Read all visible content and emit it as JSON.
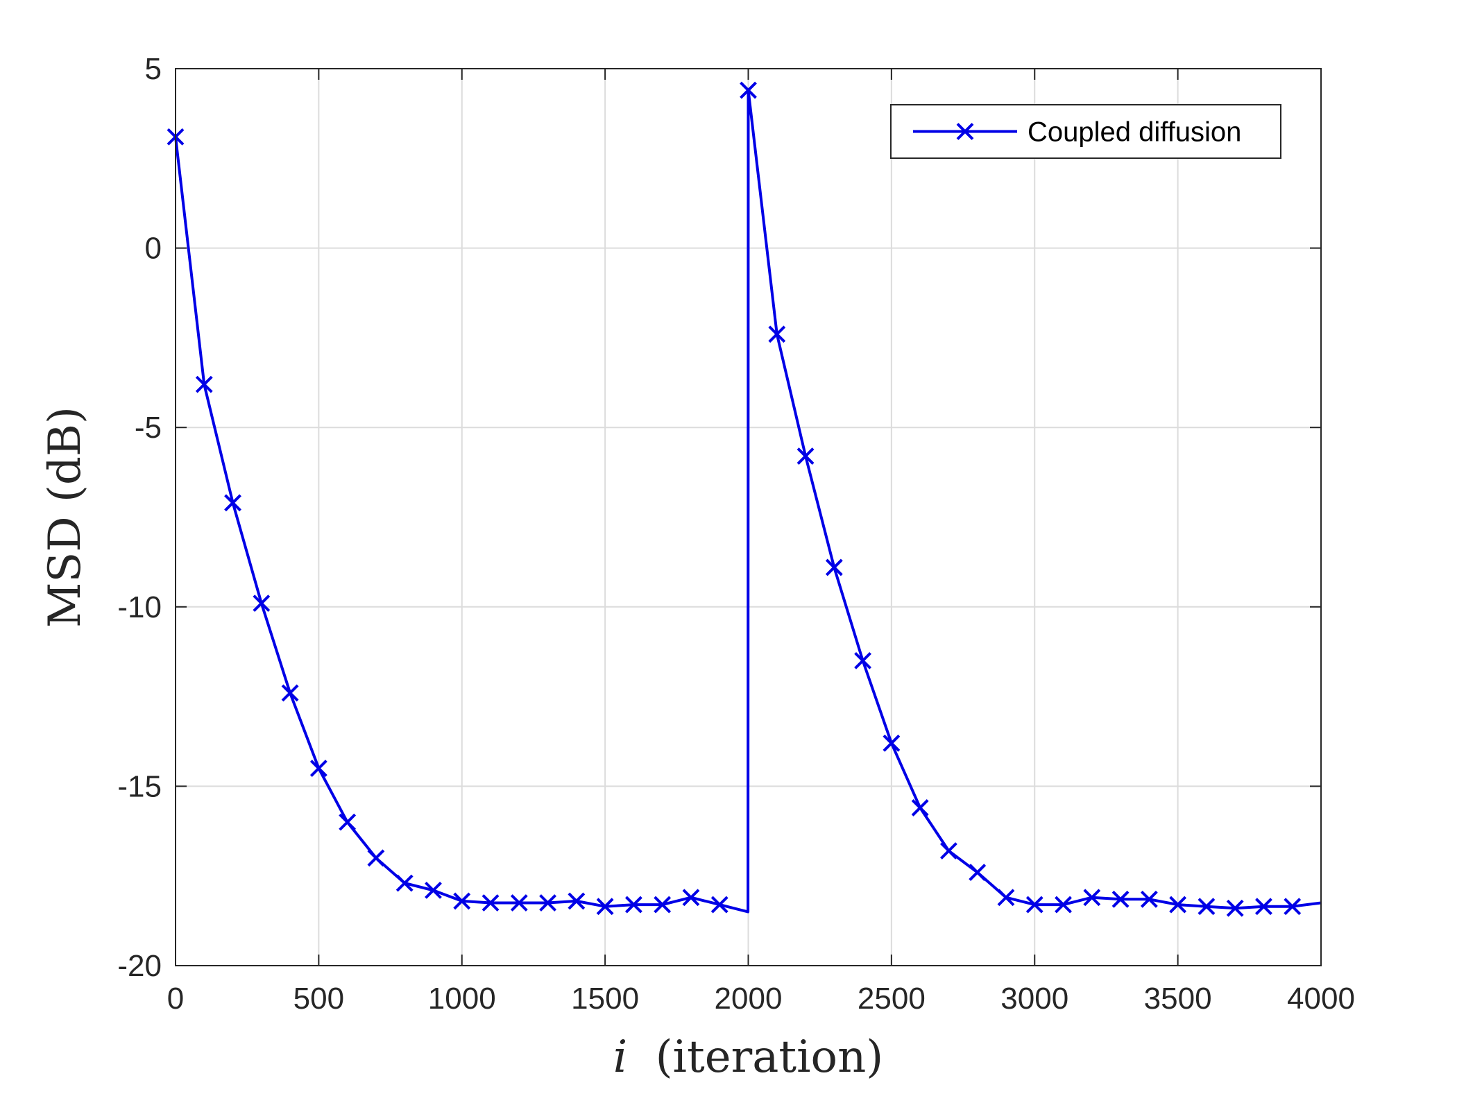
{
  "chart_data": {
    "type": "line",
    "xlabel_italic": "i",
    "xlabel": "(iteration)",
    "ylabel": "MSD (dB)",
    "xlim": [
      0,
      4000
    ],
    "ylim": [
      -20,
      5
    ],
    "xticks": [
      0,
      500,
      1000,
      1500,
      2000,
      2500,
      3000,
      3500,
      4000
    ],
    "yticks": [
      -20,
      -15,
      -10,
      -5,
      0,
      5
    ],
    "xtick_labels": [
      "0",
      "500",
      "1000",
      "1500",
      "2000",
      "2500",
      "3000",
      "3500",
      "4000"
    ],
    "ytick_labels": [
      "-20",
      "-15",
      "-10",
      "-5",
      "0",
      "5"
    ],
    "grid": true,
    "legend_position": "top-right",
    "series": [
      {
        "name": "Coupled diffusion",
        "color": "#0000e6",
        "marker": "x",
        "x": [
          0,
          100,
          200,
          300,
          400,
          500,
          600,
          700,
          800,
          900,
          1000,
          1100,
          1200,
          1300,
          1400,
          1500,
          1600,
          1700,
          1800,
          1900,
          1999,
          2000,
          2100,
          2200,
          2300,
          2400,
          2500,
          2600,
          2700,
          2800,
          2900,
          3000,
          3100,
          3200,
          3300,
          3400,
          3500,
          3600,
          3700,
          3800,
          3900,
          4000
        ],
        "y": [
          3.1,
          -3.8,
          -7.1,
          -9.9,
          -12.4,
          -14.5,
          -16.0,
          -17.0,
          -17.7,
          -17.9,
          -18.2,
          -18.25,
          -18.25,
          -18.25,
          -18.2,
          -18.35,
          -18.3,
          -18.3,
          -18.1,
          -18.3,
          -18.5,
          4.4,
          -2.4,
          -5.8,
          -8.9,
          -11.5,
          -13.8,
          -15.6,
          -16.8,
          -17.4,
          -18.1,
          -18.3,
          -18.3,
          -18.1,
          -18.15,
          -18.15,
          -18.3,
          -18.35,
          -18.4,
          -18.35,
          -18.35,
          -18.25
        ],
        "marker_x": [
          0,
          100,
          200,
          300,
          400,
          500,
          600,
          700,
          800,
          900,
          1000,
          1100,
          1200,
          1300,
          1400,
          1500,
          1600,
          1700,
          1800,
          1900,
          2000,
          2100,
          2200,
          2300,
          2400,
          2500,
          2600,
          2700,
          2800,
          2900,
          3000,
          3100,
          3200,
          3300,
          3400,
          3500,
          3600,
          3700,
          3800,
          3900
        ],
        "marker_y": [
          3.1,
          -3.8,
          -7.1,
          -9.9,
          -12.4,
          -14.5,
          -16.0,
          -17.0,
          -17.7,
          -17.9,
          -18.2,
          -18.25,
          -18.25,
          -18.25,
          -18.2,
          -18.35,
          -18.3,
          -18.3,
          -18.1,
          -18.3,
          4.4,
          -2.4,
          -5.8,
          -8.9,
          -11.5,
          -13.8,
          -15.6,
          -16.8,
          -17.4,
          -18.1,
          -18.3,
          -18.3,
          -18.1,
          -18.15,
          -18.15,
          -18.3,
          -18.35,
          -18.4,
          -18.35,
          -18.35
        ]
      }
    ]
  }
}
